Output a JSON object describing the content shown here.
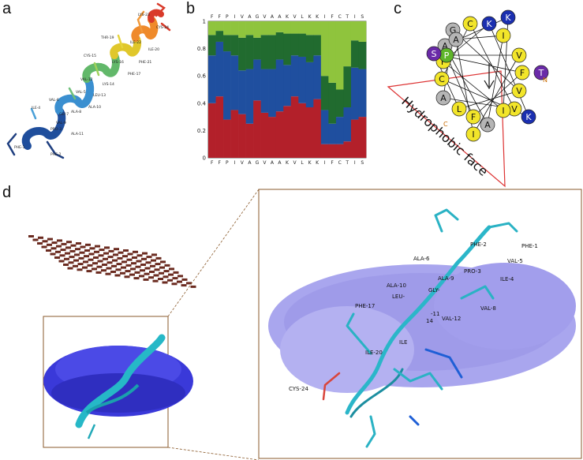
{
  "panels": {
    "a": {
      "letter": "a"
    },
    "b": {
      "letter": "b"
    },
    "c": {
      "letter": "c"
    },
    "d": {
      "letter": "d"
    }
  },
  "panel_a": {
    "residue_labels": [
      "LYS-23",
      "CYS-24",
      "THR-19",
      "ILE-22",
      "ILE-20",
      "PHE-21",
      "CYS-15",
      "LYS-16",
      "PHE-17",
      "VAL-12",
      "LYS-14",
      "ILE-4",
      "VAL-5",
      "LEU-13",
      "VAL-6",
      "ALA-8",
      "ALA-10",
      "GLY-7",
      "VAL-9",
      "PRO-3",
      "ALA-11",
      "PHE-1",
      "PHE-2"
    ]
  },
  "chart_data": {
    "type": "bar",
    "categories": [
      "F",
      "F",
      "P",
      "I",
      "V",
      "A",
      "G",
      "V",
      "A",
      "A",
      "K",
      "V",
      "L",
      "K",
      "K",
      "I",
      "F",
      "C",
      "T",
      "I",
      "S"
    ],
    "ylim": [
      0,
      1
    ],
    "yticks": [
      "0",
      "0.2",
      "0.4",
      "0.6",
      "0.8",
      "1"
    ],
    "series": [
      {
        "values": [
          0.4,
          0.45,
          0.28,
          0.35,
          0.32,
          0.25,
          0.42,
          0.33,
          0.3,
          0.34,
          0.38,
          0.45,
          0.4,
          0.37,
          0.43,
          0.1,
          0.1,
          0.1,
          0.12,
          0.28,
          0.3
        ]
      },
      {
        "values": [
          0.35,
          0.4,
          0.5,
          0.4,
          0.32,
          0.4,
          0.3,
          0.32,
          0.35,
          0.38,
          0.3,
          0.3,
          0.34,
          0.33,
          0.32,
          0.25,
          0.15,
          0.2,
          0.25,
          0.38,
          0.35
        ]
      },
      {
        "values": [
          0.15,
          0.08,
          0.12,
          0.15,
          0.24,
          0.25,
          0.16,
          0.25,
          0.25,
          0.2,
          0.23,
          0.16,
          0.17,
          0.2,
          0.15,
          0.25,
          0.3,
          0.2,
          0.3,
          0.2,
          0.2
        ]
      },
      {
        "values": [
          0.1,
          0.07,
          0.1,
          0.1,
          0.12,
          0.1,
          0.12,
          0.1,
          0.1,
          0.08,
          0.09,
          0.09,
          0.09,
          0.1,
          0.1,
          0.4,
          0.45,
          0.5,
          0.33,
          0.14,
          0.15
        ]
      }
    ]
  },
  "panel_c": {
    "residues": [
      "G",
      "C",
      "K",
      "K",
      "I",
      "V",
      "F",
      "V",
      "V",
      "K",
      "I",
      "A",
      "I",
      "F",
      "L",
      "A",
      "C",
      "F",
      "A",
      "A",
      "P",
      "S",
      "T"
    ],
    "subscripts": [
      "N",
      "C"
    ],
    "face_label": "Hydrophobic face"
  },
  "panel_d": {
    "labels": [
      "PHE-2",
      "PHE-1",
      "VAL-5",
      "ALA-6",
      "PRO-3",
      "ALA-9",
      "ILE-4",
      "ALA-10",
      "LEU-",
      "GLY-",
      "VAL-8",
      "PHE-17",
      "14",
      "-11",
      "VAL-12",
      "ILE",
      "ILE-20",
      "CYS-24"
    ]
  }
}
